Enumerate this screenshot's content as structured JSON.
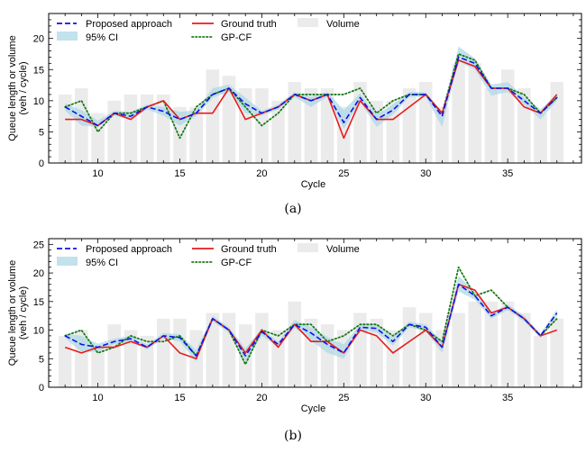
{
  "colors": {
    "proposed": "#1010e8",
    "ground_truth": "#e81c1c",
    "gpcf": "#1a7a1a",
    "ci": "#add8e6",
    "volume": "#ebebeb"
  },
  "chart_data": [
    {
      "type": "line",
      "caption": "(a)",
      "xlabel": "Cycle",
      "ylabel_line1": "Queue length or volume",
      "ylabel_line2": "(veh / cycle)",
      "xlim": [
        7,
        39.5
      ],
      "ylim": [
        0,
        24
      ],
      "xticks": [
        10,
        15,
        20,
        25,
        30,
        35
      ],
      "yticks": [
        0,
        5,
        10,
        15,
        20
      ],
      "legend": {
        "placement": "top-left",
        "entries": [
          "Proposed approach",
          "95% CI",
          "Ground truth",
          "GP-CF",
          "Volume"
        ]
      },
      "x": [
        8,
        9,
        10,
        11,
        12,
        13,
        14,
        15,
        16,
        17,
        18,
        19,
        20,
        21,
        22,
        23,
        24,
        25,
        26,
        27,
        28,
        29,
        30,
        31,
        32,
        33,
        34,
        35,
        36,
        37,
        38
      ],
      "volume": [
        11,
        12,
        8,
        10,
        11,
        11,
        11,
        9,
        9,
        15,
        14,
        12,
        12,
        10,
        13,
        12,
        12,
        9,
        13,
        10,
        10,
        12,
        13,
        9,
        16,
        16,
        12,
        15,
        12,
        8,
        13
      ],
      "series": [
        {
          "name": "Proposed approach",
          "values": [
            9,
            7.5,
            6,
            8,
            7.5,
            9,
            8.3,
            7,
            8,
            11,
            12,
            9.5,
            8,
            9,
            11,
            10,
            11,
            6.5,
            10.5,
            7,
            8.5,
            11,
            11,
            7.5,
            17,
            16,
            12,
            12,
            10,
            8,
            10.5
          ]
        },
        {
          "name": "Ground truth",
          "values": [
            7,
            7,
            6,
            8,
            7,
            9,
            10,
            7,
            8,
            8,
            12,
            7,
            8,
            9,
            11,
            10,
            11,
            4,
            10,
            7,
            7,
            9,
            11,
            8,
            16.5,
            15.5,
            12,
            12,
            9,
            8,
            11
          ]
        },
        {
          "name": "GP-CF",
          "values": [
            9,
            10,
            5,
            8,
            8,
            9,
            10,
            4,
            9,
            11,
            12,
            9,
            6,
            8,
            11,
            11,
            11,
            11,
            12,
            8,
            10,
            11,
            11,
            8,
            17.5,
            16.5,
            12,
            12,
            11,
            8,
            10.5
          ]
        }
      ],
      "ci_lower": [
        8.4,
        6.0,
        5.8,
        7.6,
        7.0,
        8.6,
        7.6,
        6.0,
        7.5,
        10.5,
        11.4,
        8.0,
        7.6,
        8.6,
        10.6,
        9.0,
        10.6,
        5.5,
        9.8,
        5.8,
        7.8,
        10.6,
        10.6,
        5.8,
        16.3,
        15.0,
        10.8,
        11.4,
        9.4,
        7.0,
        10.0
      ],
      "ci_upper": [
        9.6,
        8.5,
        6.8,
        8.4,
        8.2,
        9.4,
        9.0,
        8.2,
        8.5,
        12.0,
        12.6,
        10.5,
        8.4,
        9.4,
        11.4,
        10.6,
        11.4,
        8.5,
        11.2,
        7.8,
        9.4,
        11.4,
        11.4,
        8.0,
        18.7,
        16.8,
        12.6,
        13.0,
        10.6,
        8.6,
        11.0
      ]
    },
    {
      "type": "line",
      "caption": "(b)",
      "xlabel": "Cycle",
      "ylabel_line1": "Queue length or volume",
      "ylabel_line2": "(veh / cycle)",
      "xlim": [
        7,
        39.5
      ],
      "ylim": [
        0,
        26
      ],
      "xticks": [
        10,
        15,
        20,
        25,
        30,
        35
      ],
      "yticks": [
        0,
        5,
        10,
        15,
        20,
        25
      ],
      "legend": {
        "placement": "top-left",
        "entries": [
          "Proposed approach",
          "95% CI",
          "Ground truth",
          "GP-CF",
          "Volume"
        ]
      },
      "x": [
        8,
        9,
        10,
        11,
        12,
        13,
        14,
        15,
        16,
        17,
        18,
        19,
        20,
        21,
        22,
        23,
        24,
        25,
        26,
        27,
        28,
        29,
        30,
        31,
        32,
        33,
        34,
        35,
        36,
        37,
        38
      ],
      "volume": [
        9,
        10,
        7,
        11,
        10,
        9,
        12,
        12,
        10,
        13,
        13,
        11,
        13,
        10,
        15,
        12,
        11,
        10,
        13,
        12,
        10,
        14,
        13,
        10,
        13,
        15,
        15,
        15,
        13,
        9,
        12
      ],
      "series": [
        {
          "name": "Proposed approach",
          "values": [
            9,
            7.5,
            7,
            8,
            8.5,
            7,
            9,
            8.7,
            5.5,
            12,
            10,
            5.5,
            9.7,
            7.5,
            11,
            9.5,
            7.5,
            6,
            10.5,
            10.3,
            8,
            11,
            10.5,
            7,
            18,
            16,
            12.5,
            14,
            12,
            9,
            13
          ]
        },
        {
          "name": "Ground truth",
          "values": [
            7,
            6,
            7,
            7,
            8,
            7,
            9,
            6,
            5,
            12,
            10,
            6,
            10,
            7,
            11,
            8,
            8,
            6,
            10,
            9,
            6,
            8,
            10,
            7,
            18,
            17,
            13,
            14,
            12,
            9,
            10
          ]
        },
        {
          "name": "GP-CF",
          "values": [
            9,
            10,
            6,
            7,
            9,
            8,
            8,
            9,
            5.5,
            12,
            10,
            4,
            10,
            9,
            11,
            11,
            8,
            9,
            11,
            11,
            9,
            11,
            10,
            8,
            21,
            16,
            17,
            14,
            12,
            9,
            12
          ]
        }
      ],
      "ci_lower": [
        8.6,
        6.2,
        6.2,
        7.5,
        8.0,
        6.6,
        8.5,
        8.0,
        4.5,
        11.5,
        9.5,
        4.5,
        9.0,
        7.0,
        10.4,
        8.2,
        6.0,
        5.0,
        10.0,
        9.6,
        7.3,
        10.5,
        9.8,
        6.0,
        16.8,
        15.3,
        12.0,
        13.5,
        11.5,
        8.6,
        12.4
      ],
      "ci_upper": [
        9.4,
        9.0,
        7.6,
        8.5,
        9.0,
        7.5,
        9.5,
        9.3,
        6.5,
        12.5,
        10.5,
        6.8,
        10.3,
        8.0,
        11.8,
        10.5,
        8.8,
        7.5,
        11.0,
        10.9,
        8.7,
        11.5,
        11.0,
        8.0,
        19.5,
        16.7,
        13.0,
        14.5,
        12.5,
        9.4,
        13.6
      ]
    }
  ]
}
